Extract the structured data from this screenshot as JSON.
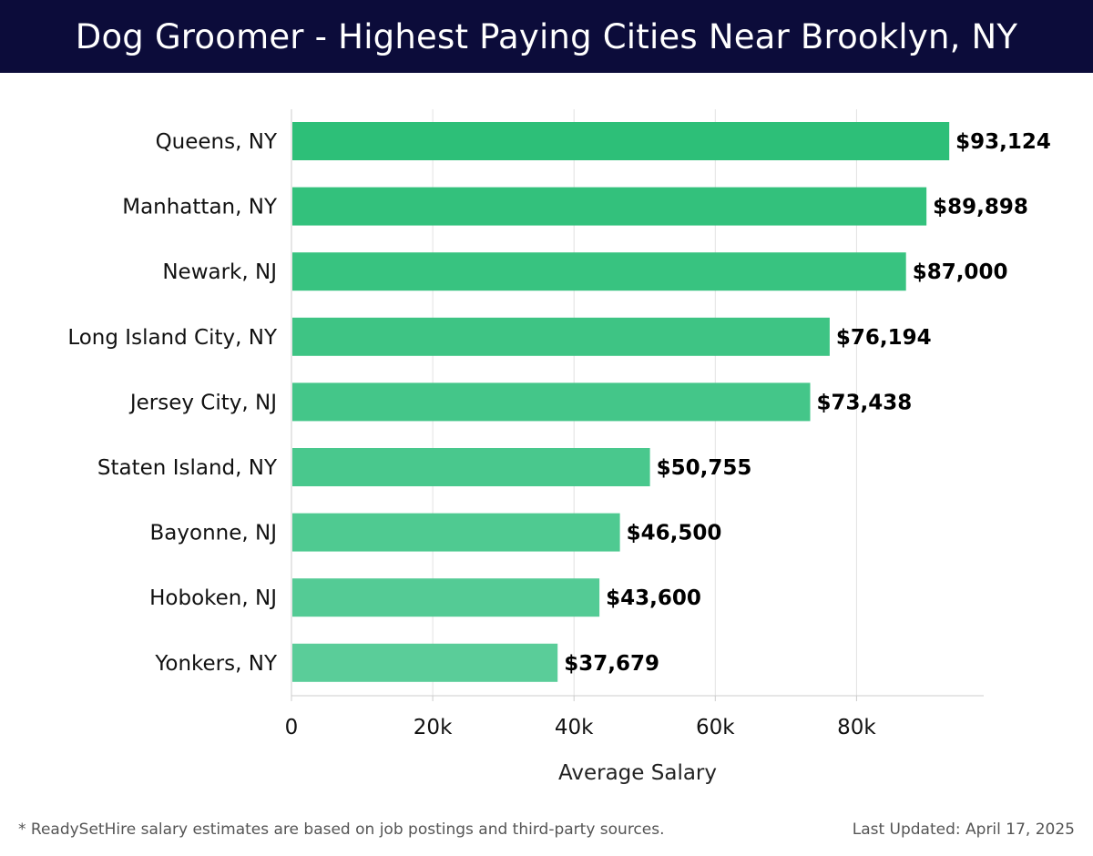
{
  "header": {
    "title": "Dog Groomer - Highest Paying Cities Near Brooklyn, NY"
  },
  "footer": {
    "note": "* ReadySetHire salary estimates are based on job postings and third-party sources.",
    "updated": "Last Updated: April 17, 2025"
  },
  "colors": {
    "header_bg": "#0c0c3a",
    "bar_top": "#2dbf78",
    "bar_bottom": "#5acd99",
    "grid": "#e2e2e2",
    "axis": "#cccccc"
  },
  "chart_data": {
    "type": "bar",
    "orientation": "horizontal",
    "categories": [
      "Queens, NY",
      "Manhattan, NY",
      "Newark, NJ",
      "Long Island City, NY",
      "Jersey City, NJ",
      "Staten Island, NY",
      "Bayonne, NJ",
      "Hoboken, NJ",
      "Yonkers, NY"
    ],
    "values": [
      93124,
      89898,
      87000,
      76194,
      73438,
      50755,
      46500,
      43600,
      37679
    ],
    "value_labels": [
      "$93,124",
      "$89,898",
      "$87,000",
      "$76,194",
      "$73,438",
      "$50,755",
      "$46,500",
      "$43,600",
      "$37,679"
    ],
    "xlabel": "Average Salary",
    "xlim": [
      0,
      98000
    ],
    "x_ticks": [
      0,
      20000,
      40000,
      60000,
      80000
    ],
    "x_tick_labels": [
      "0",
      "20k",
      "40k",
      "60k",
      "80k"
    ],
    "grid": true
  }
}
